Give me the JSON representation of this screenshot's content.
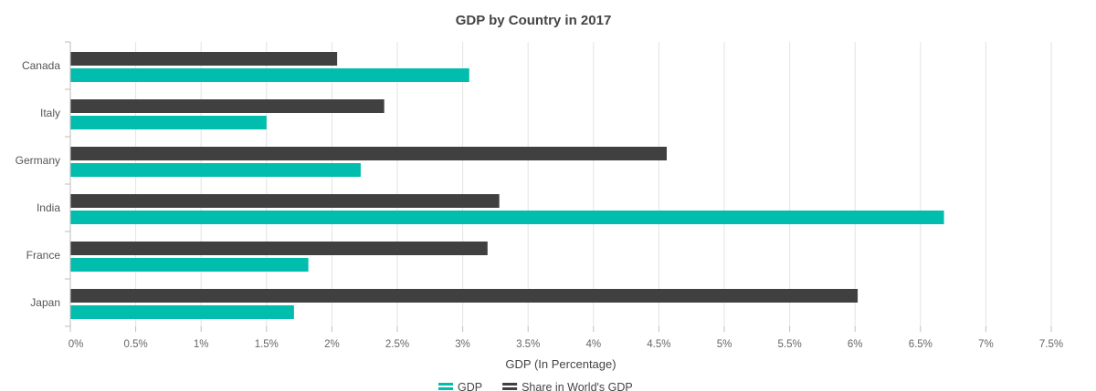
{
  "chart_data": {
    "type": "bar",
    "orientation": "horizontal",
    "title": "GDP by Country in 2017",
    "xlabel": "GDP (In Percentage)",
    "ylabel": "",
    "categories": [
      "Canada",
      "Italy",
      "Germany",
      "India",
      "France",
      "Japan"
    ],
    "series": [
      {
        "name": "Share in World's GDP",
        "color": "#404040",
        "values": [
          2.04,
          2.4,
          4.56,
          3.28,
          3.19,
          6.02
        ]
      },
      {
        "name": "GDP",
        "color": "#00bdae",
        "values": [
          3.05,
          1.5,
          2.22,
          6.68,
          1.82,
          1.71
        ]
      }
    ],
    "xlim": [
      0,
      7.5
    ],
    "xticks": [
      "0%",
      "0.5%",
      "1%",
      "1.5%",
      "2%",
      "2.5%",
      "3%",
      "3.5%",
      "4%",
      "4.5%",
      "5%",
      "5.5%",
      "6%",
      "6.5%",
      "7%",
      "7.5%"
    ],
    "grid": true,
    "legend": {
      "position": "bottom",
      "items": [
        {
          "label": "GDP",
          "color": "#00bdae"
        },
        {
          "label": "Share in World's GDP",
          "color": "#404040"
        }
      ]
    }
  }
}
